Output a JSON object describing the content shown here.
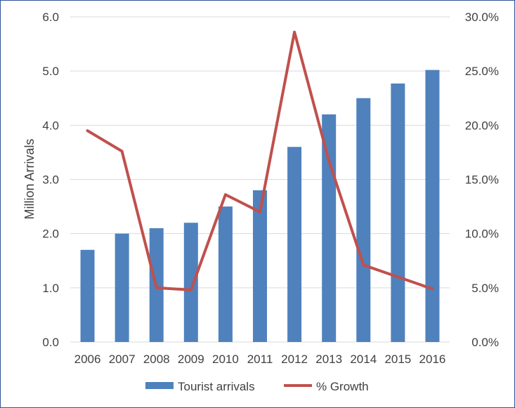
{
  "chart_data": {
    "type": "bar+line",
    "categories": [
      "2006",
      "2007",
      "2008",
      "2009",
      "2010",
      "2011",
      "2012",
      "2013",
      "2014",
      "2015",
      "2016"
    ],
    "series": [
      {
        "name": "Tourist arrivals",
        "type": "bar",
        "axis": "left",
        "color": "#4f81bd",
        "values": [
          1.7,
          2.0,
          2.1,
          2.2,
          2.5,
          2.8,
          3.6,
          4.2,
          4.5,
          4.77,
          5.02
        ]
      },
      {
        "name": "% Growth",
        "type": "line",
        "axis": "right",
        "color": "#c0504d",
        "values": [
          19.5,
          17.6,
          5.0,
          4.8,
          13.6,
          12.0,
          28.6,
          16.7,
          7.1,
          6.0,
          4.9
        ]
      }
    ],
    "y_left": {
      "label": "Million Arrivals",
      "range": [
        0,
        6
      ],
      "ticks": [
        "0.0",
        "1.0",
        "2.0",
        "3.0",
        "4.0",
        "5.0",
        "6.0"
      ]
    },
    "y_right": {
      "label": "",
      "range": [
        0,
        30
      ],
      "ticks": [
        "0.0%",
        "5.0%",
        "10.0%",
        "15.0%",
        "20.0%",
        "25.0%",
        "30.0%"
      ]
    },
    "grid": true,
    "legend": "bottom",
    "colors": {
      "grid": "#d9d9d9",
      "text": "#404040",
      "border": "#2f5597"
    }
  }
}
